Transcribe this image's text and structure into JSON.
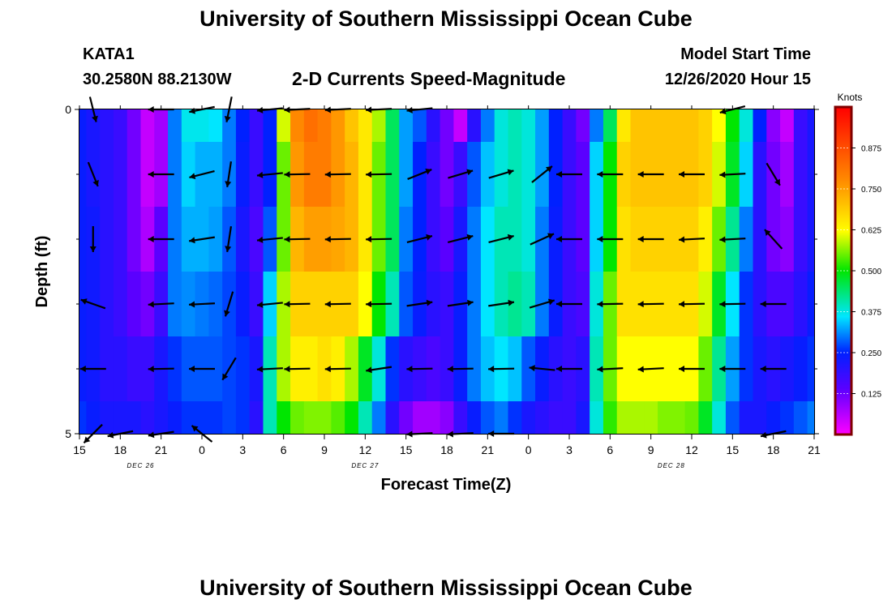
{
  "page": {
    "title_top": "University of Southern Mississippi Ocean Cube",
    "title_bottom": "University of Southern Mississippi Ocean Cube",
    "station_id": "KATA1",
    "coordinates": "30.2580N 88.2130W",
    "model_start_label": "Model Start Time",
    "model_start_value": "12/26/2020 Hour 15"
  },
  "chart_data": {
    "type": "heatmap",
    "title": "2-D Currents Speed-Magnitude",
    "xlabel": "Forecast Time(Z)",
    "ylabel": "Depth (ft)",
    "units": "Knots",
    "x_hours_range": [
      0,
      54
    ],
    "y_range": [
      0,
      5
    ],
    "x_ticks": [
      {
        "h": 0,
        "label": "15"
      },
      {
        "h": 3,
        "label": "18"
      },
      {
        "h": 6,
        "label": "21"
      },
      {
        "h": 9,
        "label": "0"
      },
      {
        "h": 12,
        "label": "3"
      },
      {
        "h": 15,
        "label": "6"
      },
      {
        "h": 18,
        "label": "9"
      },
      {
        "h": 21,
        "label": "12"
      },
      {
        "h": 24,
        "label": "15"
      },
      {
        "h": 27,
        "label": "18"
      },
      {
        "h": 30,
        "label": "21"
      },
      {
        "h": 33,
        "label": "0"
      },
      {
        "h": 36,
        "label": "3"
      },
      {
        "h": 39,
        "label": "6"
      },
      {
        "h": 42,
        "label": "9"
      },
      {
        "h": 45,
        "label": "12"
      },
      {
        "h": 48,
        "label": "15"
      },
      {
        "h": 51,
        "label": "18"
      },
      {
        "h": 54,
        "label": "21"
      }
    ],
    "y_tick_labels": [
      {
        "v": 0,
        "label": "0"
      },
      {
        "v": 5,
        "label": "5"
      }
    ],
    "y_minor_ticks": [
      1,
      2,
      3,
      4
    ],
    "date_labels": [
      {
        "h": 4.5,
        "label": "DEC 26"
      },
      {
        "h": 21,
        "label": "DEC 27"
      },
      {
        "h": 43.5,
        "label": "DEC 28"
      }
    ],
    "colorbar": {
      "min": 0.0,
      "max": 1.0,
      "ticks": [
        "0.125",
        "0.250",
        "0.375",
        "0.500",
        "0.625",
        "0.750",
        "0.875"
      ]
    },
    "time_hours": [
      0,
      1,
      2,
      3,
      4,
      5,
      6,
      7,
      8,
      9,
      10,
      11,
      12,
      13,
      14,
      15,
      16,
      17,
      18,
      19,
      20,
      21,
      22,
      23,
      24,
      25,
      26,
      27,
      28,
      29,
      30,
      31,
      32,
      33,
      34,
      35,
      36,
      37,
      38,
      39,
      40,
      41,
      42,
      43,
      44,
      45,
      46,
      47,
      48,
      49,
      50,
      51,
      52,
      53,
      54
    ],
    "depth_rows": [
      {
        "depth": 0,
        "speeds": [
          0.24,
          0.22,
          0.2,
          0.18,
          0.12,
          0.05,
          0.08,
          0.3,
          0.37,
          0.37,
          0.36,
          0.3,
          0.25,
          0.18,
          0.25,
          0.6,
          0.78,
          0.82,
          0.8,
          0.76,
          0.7,
          0.65,
          0.58,
          0.45,
          0.32,
          0.28,
          0.2,
          0.12,
          0.05,
          0.2,
          0.3,
          0.38,
          0.4,
          0.38,
          0.32,
          0.25,
          0.18,
          0.12,
          0.3,
          0.45,
          0.65,
          0.7,
          0.7,
          0.7,
          0.7,
          0.7,
          0.68,
          0.62,
          0.5,
          0.38,
          0.25,
          0.1,
          0.05,
          0.18,
          0.22
        ]
      },
      {
        "depth": 1,
        "speeds": [
          0.24,
          0.22,
          0.2,
          0.18,
          0.12,
          0.05,
          0.08,
          0.3,
          0.35,
          0.33,
          0.33,
          0.3,
          0.24,
          0.18,
          0.25,
          0.55,
          0.76,
          0.8,
          0.8,
          0.76,
          0.72,
          0.65,
          0.55,
          0.45,
          0.32,
          0.25,
          0.18,
          0.12,
          0.18,
          0.28,
          0.34,
          0.38,
          0.4,
          0.38,
          0.32,
          0.25,
          0.18,
          0.14,
          0.35,
          0.5,
          0.68,
          0.7,
          0.7,
          0.7,
          0.7,
          0.7,
          0.68,
          0.6,
          0.48,
          0.35,
          0.2,
          0.12,
          0.08,
          0.18,
          0.22
        ]
      },
      {
        "depth": 2,
        "speeds": [
          0.24,
          0.23,
          0.2,
          0.18,
          0.12,
          0.07,
          0.14,
          0.3,
          0.33,
          0.33,
          0.32,
          0.28,
          0.22,
          0.16,
          0.28,
          0.55,
          0.72,
          0.75,
          0.75,
          0.74,
          0.72,
          0.65,
          0.55,
          0.45,
          0.3,
          0.25,
          0.18,
          0.14,
          0.22,
          0.3,
          0.36,
          0.4,
          0.4,
          0.38,
          0.3,
          0.24,
          0.18,
          0.14,
          0.35,
          0.5,
          0.66,
          0.68,
          0.68,
          0.68,
          0.68,
          0.68,
          0.64,
          0.55,
          0.42,
          0.3,
          0.2,
          0.12,
          0.1,
          0.18,
          0.22
        ]
      },
      {
        "depth": 3,
        "speeds": [
          0.24,
          0.23,
          0.2,
          0.18,
          0.14,
          0.12,
          0.18,
          0.3,
          0.31,
          0.3,
          0.29,
          0.27,
          0.24,
          0.18,
          0.35,
          0.58,
          0.68,
          0.68,
          0.68,
          0.68,
          0.68,
          0.62,
          0.5,
          0.4,
          0.28,
          0.24,
          0.2,
          0.18,
          0.24,
          0.3,
          0.36,
          0.4,
          0.42,
          0.4,
          0.3,
          0.24,
          0.18,
          0.16,
          0.38,
          0.55,
          0.66,
          0.66,
          0.66,
          0.66,
          0.66,
          0.66,
          0.6,
          0.48,
          0.36,
          0.26,
          0.2,
          0.16,
          0.16,
          0.2,
          0.24
        ]
      },
      {
        "depth": 4,
        "speeds": [
          0.24,
          0.23,
          0.2,
          0.2,
          0.18,
          0.18,
          0.22,
          0.26,
          0.28,
          0.28,
          0.28,
          0.27,
          0.26,
          0.22,
          0.4,
          0.58,
          0.64,
          0.64,
          0.66,
          0.64,
          0.58,
          0.48,
          0.38,
          0.26,
          0.2,
          0.18,
          0.16,
          0.18,
          0.24,
          0.3,
          0.34,
          0.36,
          0.34,
          0.28,
          0.24,
          0.2,
          0.18,
          0.2,
          0.4,
          0.55,
          0.62,
          0.62,
          0.62,
          0.62,
          0.62,
          0.62,
          0.55,
          0.42,
          0.32,
          0.26,
          0.22,
          0.2,
          0.22,
          0.24,
          0.26
        ]
      },
      {
        "depth": 5,
        "speeds": [
          0.26,
          0.24,
          0.22,
          0.22,
          0.22,
          0.2,
          0.22,
          0.24,
          0.26,
          0.26,
          0.26,
          0.27,
          0.26,
          0.2,
          0.4,
          0.5,
          0.55,
          0.56,
          0.56,
          0.54,
          0.5,
          0.4,
          0.3,
          0.2,
          0.12,
          0.08,
          0.08,
          0.1,
          0.18,
          0.24,
          0.28,
          0.3,
          0.26,
          0.22,
          0.2,
          0.18,
          0.18,
          0.22,
          0.38,
          0.52,
          0.58,
          0.58,
          0.58,
          0.56,
          0.56,
          0.55,
          0.48,
          0.38,
          0.28,
          0.22,
          0.22,
          0.24,
          0.26,
          0.28,
          0.3
        ]
      }
    ],
    "arrow_times": [
      1,
      3,
      6,
      9,
      11,
      14,
      16,
      19,
      22,
      25,
      28,
      31,
      34,
      36,
      39,
      42,
      45,
      48,
      51
    ],
    "arrows": [
      [
        {
          "dx": 0.25,
          "dy": 1
        },
        {
          "dx": 0,
          "dy": 0
        },
        {
          "dx": -1,
          "dy": 0
        },
        {
          "dx": -1,
          "dy": 0.2
        },
        {
          "dx": -0.2,
          "dy": 1
        },
        {
          "dx": -1,
          "dy": 0.1
        },
        {
          "dx": -1,
          "dy": 0.05
        },
        {
          "dx": -1,
          "dy": 0.05
        },
        {
          "dx": -1,
          "dy": 0.05
        },
        {
          "dx": -1,
          "dy": 0.1
        },
        {
          "dx": 0,
          "dy": 0
        },
        {
          "dx": 0,
          "dy": 0
        },
        {
          "dx": 0,
          "dy": 0
        },
        {
          "dx": 0,
          "dy": 0
        },
        {
          "dx": 0,
          "dy": 0
        },
        {
          "dx": 0,
          "dy": 0
        },
        {
          "dx": 0,
          "dy": 0
        },
        {
          "dx": -1,
          "dy": 0.25
        },
        {
          "dx": 0,
          "dy": 0
        }
      ],
      [
        {
          "dx": 0.4,
          "dy": 1
        },
        {
          "dx": 0,
          "dy": 0
        },
        {
          "dx": -1,
          "dy": 0
        },
        {
          "dx": -1,
          "dy": 0.25
        },
        {
          "dx": -0.15,
          "dy": 1
        },
        {
          "dx": -1,
          "dy": 0.1
        },
        {
          "dx": -1,
          "dy": 0.02
        },
        {
          "dx": -1,
          "dy": 0.02
        },
        {
          "dx": -1,
          "dy": 0.02
        },
        {
          "dx": 1,
          "dy": -0.4
        },
        {
          "dx": 1,
          "dy": -0.3
        },
        {
          "dx": 1,
          "dy": -0.3
        },
        {
          "dx": 1,
          "dy": -0.8
        },
        {
          "dx": -1,
          "dy": 0
        },
        {
          "dx": -1,
          "dy": 0
        },
        {
          "dx": -1,
          "dy": 0
        },
        {
          "dx": -1,
          "dy": 0
        },
        {
          "dx": -1,
          "dy": 0.05
        },
        {
          "dx": 0.6,
          "dy": 1
        }
      ],
      [
        {
          "dx": 0,
          "dy": 1
        },
        {
          "dx": 0,
          "dy": 0
        },
        {
          "dx": -1,
          "dy": 0
        },
        {
          "dx": -1,
          "dy": 0.15
        },
        {
          "dx": -0.15,
          "dy": 1
        },
        {
          "dx": -1,
          "dy": 0.1
        },
        {
          "dx": -1,
          "dy": 0.02
        },
        {
          "dx": -1,
          "dy": 0.02
        },
        {
          "dx": -1,
          "dy": 0.02
        },
        {
          "dx": 1,
          "dy": -0.25
        },
        {
          "dx": 1,
          "dy": -0.25
        },
        {
          "dx": 1,
          "dy": -0.25
        },
        {
          "dx": 1,
          "dy": -0.45
        },
        {
          "dx": -1,
          "dy": 0
        },
        {
          "dx": -1,
          "dy": 0
        },
        {
          "dx": -1,
          "dy": 0
        },
        {
          "dx": -1,
          "dy": 0.05
        },
        {
          "dx": -1,
          "dy": 0.05
        },
        {
          "dx": -0.9,
          "dy": -1
        }
      ],
      [
        {
          "dx": -1,
          "dy": -0.35
        },
        {
          "dx": 0,
          "dy": 0
        },
        {
          "dx": -1,
          "dy": 0.05
        },
        {
          "dx": -1,
          "dy": 0.05
        },
        {
          "dx": -0.3,
          "dy": 1
        },
        {
          "dx": -1,
          "dy": 0.1
        },
        {
          "dx": -1,
          "dy": 0.02
        },
        {
          "dx": -1,
          "dy": 0.02
        },
        {
          "dx": -1,
          "dy": 0.02
        },
        {
          "dx": 1,
          "dy": -0.15
        },
        {
          "dx": 1,
          "dy": -0.15
        },
        {
          "dx": 1,
          "dy": -0.15
        },
        {
          "dx": 1,
          "dy": -0.3
        },
        {
          "dx": -1,
          "dy": 0
        },
        {
          "dx": -1,
          "dy": 0.02
        },
        {
          "dx": -1,
          "dy": 0.02
        },
        {
          "dx": -1,
          "dy": 0.02
        },
        {
          "dx": -1,
          "dy": 0.02
        },
        {
          "dx": -1,
          "dy": 0
        }
      ],
      [
        {
          "dx": -1,
          "dy": 0
        },
        {
          "dx": 0,
          "dy": 0
        },
        {
          "dx": -1,
          "dy": 0.02
        },
        {
          "dx": -1,
          "dy": 0
        },
        {
          "dx": -0.6,
          "dy": 1
        },
        {
          "dx": -1,
          "dy": 0.05
        },
        {
          "dx": -1,
          "dy": 0.02
        },
        {
          "dx": -1,
          "dy": 0.02
        },
        {
          "dx": -1,
          "dy": 0.15
        },
        {
          "dx": -1,
          "dy": 0.02
        },
        {
          "dx": -1,
          "dy": 0.02
        },
        {
          "dx": -1,
          "dy": 0.02
        },
        {
          "dx": -1,
          "dy": -0.1
        },
        {
          "dx": -1,
          "dy": 0
        },
        {
          "dx": -1,
          "dy": 0.05
        },
        {
          "dx": -1,
          "dy": 0.05
        },
        {
          "dx": -1,
          "dy": 0
        },
        {
          "dx": -1,
          "dy": 0
        },
        {
          "dx": -1,
          "dy": 0
        }
      ],
      [
        {
          "dx": -1,
          "dy": 1
        },
        {
          "dx": -1,
          "dy": 0.2
        },
        {
          "dx": -1,
          "dy": 0.15
        },
        {
          "dx": -1,
          "dy": -0.8
        },
        {
          "dx": 0,
          "dy": 0
        },
        {
          "dx": 0,
          "dy": 0
        },
        {
          "dx": 0,
          "dy": 0
        },
        {
          "dx": 0,
          "dy": 0
        },
        {
          "dx": 0,
          "dy": 0
        },
        {
          "dx": -1,
          "dy": 0.05
        },
        {
          "dx": -1,
          "dy": 0.05
        },
        {
          "dx": -1,
          "dy": 0
        },
        {
          "dx": 0,
          "dy": 0
        },
        {
          "dx": 0,
          "dy": 0
        },
        {
          "dx": 0,
          "dy": 0
        },
        {
          "dx": 0,
          "dy": 0
        },
        {
          "dx": 0,
          "dy": 0
        },
        {
          "dx": 0,
          "dy": 0
        },
        {
          "dx": -1,
          "dy": 0.2
        }
      ]
    ]
  }
}
